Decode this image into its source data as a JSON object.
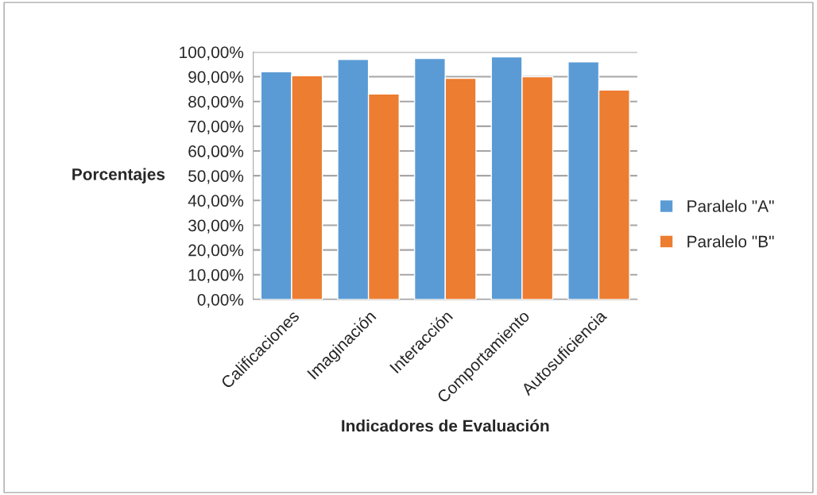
{
  "chart_data": {
    "type": "bar",
    "xlabel": "Indicadores de Evaluación",
    "ylabel": "Porcentajes",
    "categories": [
      "Calificaciones",
      "Imaginación",
      "Interacción",
      "Comportamiento",
      "Autosuficiencia"
    ],
    "series": [
      {
        "name": "Paralelo \"A\"",
        "color": "#5b9bd5",
        "values": [
          92,
          97,
          97.4,
          98,
          96
        ]
      },
      {
        "name": "Paralelo \"B\"",
        "color": "#ed7d31",
        "values": [
          90.4,
          83,
          89.4,
          90,
          84.6
        ]
      }
    ],
    "ylim": [
      0,
      100
    ],
    "yticks": [
      {
        "value": 0,
        "label": "0,00%"
      },
      {
        "value": 10,
        "label": "10,00%"
      },
      {
        "value": 20,
        "label": "20,00%"
      },
      {
        "value": 30,
        "label": "30,00%"
      },
      {
        "value": 40,
        "label": "40,00%"
      },
      {
        "value": 50,
        "label": "50,00%"
      },
      {
        "value": 60,
        "label": "60,00%"
      },
      {
        "value": 70,
        "label": "70,00%"
      },
      {
        "value": 80,
        "label": "80,00%"
      },
      {
        "value": 90,
        "label": "90,00%"
      },
      {
        "value": 100,
        "label": "100,00%"
      }
    ],
    "grid": "y",
    "legend": "right"
  }
}
